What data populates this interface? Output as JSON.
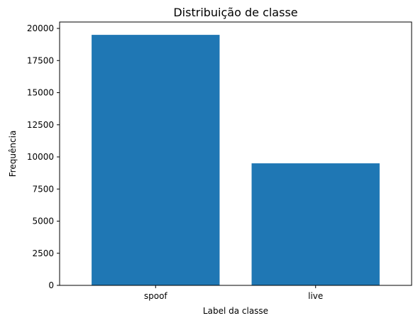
{
  "chart_data": {
    "type": "bar",
    "title": "Distribuição de classe",
    "xlabel": "Label da classe",
    "ylabel": "Frequência",
    "categories": [
      "spoof",
      "live"
    ],
    "values": [
      19500,
      9500
    ],
    "ylim": [
      0,
      20500
    ],
    "yticks": [
      0,
      2500,
      5000,
      7500,
      10000,
      12500,
      15000,
      17500,
      20000
    ],
    "ytick_labels": [
      "0",
      "2500",
      "5000",
      "7500",
      "10000",
      "12500",
      "15000",
      "17500",
      "20000"
    ],
    "bar_color": "#1f77b4",
    "grid": false,
    "legend": "none"
  }
}
